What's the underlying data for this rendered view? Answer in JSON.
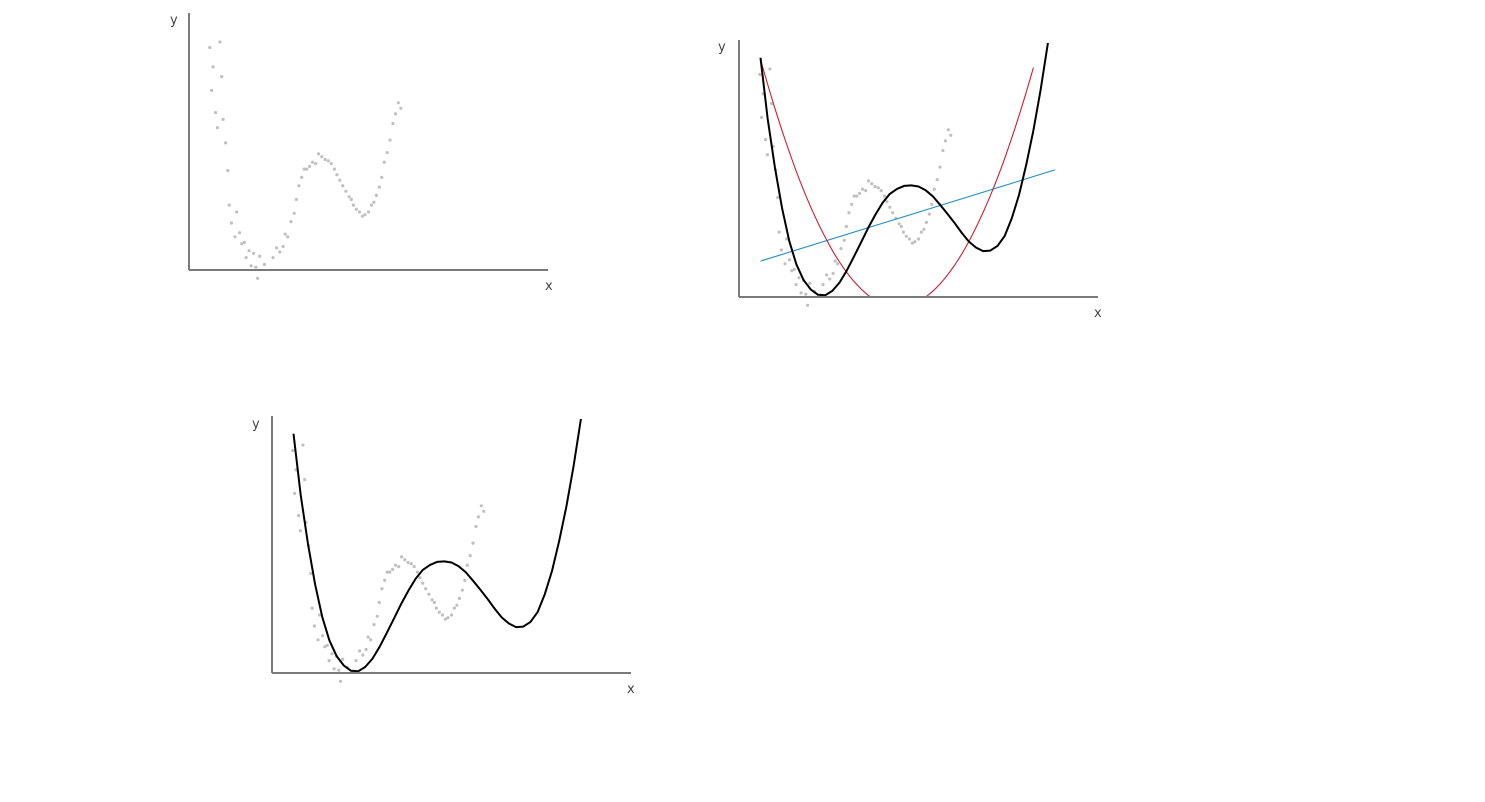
{
  "chart_data": [
    {
      "type": "scatter",
      "xlabel": "x",
      "ylabel": "y",
      "xlim": [
        0,
        10
      ],
      "ylim": [
        -2.3,
        7
      ],
      "grid": false,
      "colors": {
        "axis": "#7a7a7a",
        "points": "#c0c0c0"
      },
      "points": [
        [
          0.58,
          5.75
        ],
        [
          0.63,
          4.2
        ],
        [
          0.67,
          5.05
        ],
        [
          0.74,
          3.4
        ],
        [
          0.79,
          2.85
        ],
        [
          0.86,
          5.95
        ],
        [
          0.91,
          4.7
        ],
        [
          0.95,
          3.15
        ],
        [
          1.02,
          2.3
        ],
        [
          1.08,
          1.3
        ],
        [
          1.12,
          0.05
        ],
        [
          1.18,
          -0.6
        ],
        [
          1.28,
          -1.1
        ],
        [
          1.33,
          -0.2
        ],
        [
          1.41,
          -0.95
        ],
        [
          1.47,
          -1.35
        ],
        [
          1.54,
          -1.3
        ],
        [
          1.59,
          -1.85
        ],
        [
          1.67,
          -1.6
        ],
        [
          1.73,
          -2.15
        ],
        [
          1.8,
          -1.7
        ],
        [
          1.86,
          -2.2
        ],
        [
          1.91,
          -2.6
        ],
        [
          1.97,
          -1.8
        ],
        [
          2.1,
          -2.1
        ],
        [
          2.34,
          -1.85
        ],
        [
          2.44,
          -1.5
        ],
        [
          2.53,
          -1.65
        ],
        [
          2.62,
          -1.45
        ],
        [
          2.68,
          -1.0
        ],
        [
          2.75,
          -1.1
        ],
        [
          2.84,
          -0.55
        ],
        [
          2.93,
          -0.25
        ],
        [
          2.99,
          0.25
        ],
        [
          3.06,
          0.75
        ],
        [
          3.14,
          1.05
        ],
        [
          3.21,
          1.35
        ],
        [
          3.28,
          1.35
        ],
        [
          3.36,
          1.45
        ],
        [
          3.44,
          1.6
        ],
        [
          3.53,
          1.55
        ],
        [
          3.61,
          1.9
        ],
        [
          3.7,
          1.8
        ],
        [
          3.79,
          1.7
        ],
        [
          3.88,
          1.65
        ],
        [
          3.96,
          1.55
        ],
        [
          4.05,
          1.35
        ],
        [
          4.12,
          1.15
        ],
        [
          4.2,
          0.95
        ],
        [
          4.28,
          0.75
        ],
        [
          4.37,
          0.55
        ],
        [
          4.46,
          0.35
        ],
        [
          4.52,
          0.25
        ],
        [
          4.58,
          0.05
        ],
        [
          4.66,
          -0.1
        ],
        [
          4.75,
          -0.2
        ],
        [
          4.83,
          -0.35
        ],
        [
          4.9,
          -0.3
        ],
        [
          5.0,
          -0.2
        ],
        [
          5.08,
          0.05
        ],
        [
          5.15,
          0.15
        ],
        [
          5.22,
          0.4
        ],
        [
          5.3,
          0.7
        ],
        [
          5.37,
          1.05
        ],
        [
          5.44,
          1.6
        ],
        [
          5.52,
          1.95
        ],
        [
          5.6,
          2.4
        ],
        [
          5.68,
          3.0
        ],
        [
          5.75,
          3.35
        ],
        [
          5.83,
          3.75
        ],
        [
          5.9,
          3.55
        ]
      ]
    },
    {
      "type": "line",
      "xlabel": "x",
      "ylabel": "y",
      "xlim": [
        0,
        10
      ],
      "ylim": [
        -2.3,
        7
      ],
      "grid": false,
      "colors": {
        "axis": "#7a7a7a",
        "points": "#c0c0c0",
        "linear_fit": "#1f8fc8",
        "quadratic_fit": "#cc1f2f",
        "polynomial_fit": "#000000"
      },
      "points": [
        [
          0.58,
          5.75
        ],
        [
          0.63,
          4.2
        ],
        [
          0.67,
          5.05
        ],
        [
          0.74,
          3.4
        ],
        [
          0.79,
          2.85
        ],
        [
          0.86,
          5.95
        ],
        [
          0.91,
          4.7
        ],
        [
          0.95,
          3.15
        ],
        [
          1.02,
          2.3
        ],
        [
          1.08,
          1.3
        ],
        [
          1.12,
          0.05
        ],
        [
          1.18,
          -0.6
        ],
        [
          1.28,
          -1.1
        ],
        [
          1.33,
          -0.2
        ],
        [
          1.41,
          -0.95
        ],
        [
          1.47,
          -1.35
        ],
        [
          1.54,
          -1.3
        ],
        [
          1.59,
          -1.85
        ],
        [
          1.67,
          -1.6
        ],
        [
          1.73,
          -2.15
        ],
        [
          1.8,
          -1.7
        ],
        [
          1.86,
          -2.2
        ],
        [
          1.91,
          -2.6
        ],
        [
          1.97,
          -1.8
        ],
        [
          2.1,
          -2.1
        ],
        [
          2.34,
          -1.85
        ],
        [
          2.44,
          -1.5
        ],
        [
          2.53,
          -1.65
        ],
        [
          2.62,
          -1.45
        ],
        [
          2.68,
          -1.0
        ],
        [
          2.75,
          -1.1
        ],
        [
          2.84,
          -0.55
        ],
        [
          2.93,
          -0.25
        ],
        [
          2.99,
          0.25
        ],
        [
          3.06,
          0.75
        ],
        [
          3.14,
          1.05
        ],
        [
          3.21,
          1.35
        ],
        [
          3.28,
          1.35
        ],
        [
          3.36,
          1.45
        ],
        [
          3.44,
          1.6
        ],
        [
          3.53,
          1.55
        ],
        [
          3.61,
          1.9
        ],
        [
          3.7,
          1.8
        ],
        [
          3.79,
          1.7
        ],
        [
          3.88,
          1.65
        ],
        [
          3.96,
          1.55
        ],
        [
          4.05,
          1.35
        ],
        [
          4.12,
          1.15
        ],
        [
          4.2,
          0.95
        ],
        [
          4.28,
          0.75
        ],
        [
          4.37,
          0.55
        ],
        [
          4.46,
          0.35
        ],
        [
          4.52,
          0.25
        ],
        [
          4.58,
          0.05
        ],
        [
          4.66,
          -0.1
        ],
        [
          4.75,
          -0.2
        ],
        [
          4.83,
          -0.35
        ],
        [
          4.9,
          -0.3
        ],
        [
          5.0,
          -0.2
        ],
        [
          5.08,
          0.05
        ],
        [
          5.15,
          0.15
        ],
        [
          5.22,
          0.4
        ],
        [
          5.3,
          0.7
        ],
        [
          5.37,
          1.05
        ],
        [
          5.44,
          1.6
        ],
        [
          5.52,
          1.95
        ],
        [
          5.6,
          2.4
        ],
        [
          5.68,
          3.0
        ],
        [
          5.75,
          3.35
        ],
        [
          5.83,
          3.75
        ],
        [
          5.9,
          3.55
        ]
      ],
      "linear_fit": {
        "x": [
          0.6,
          8.8
        ],
        "y": [
          -1.0,
          2.3
        ]
      },
      "quadratic_fit": {
        "x": [
          0.6,
          5.2,
          8.2
        ],
        "y": [
          6.3,
          -2.3,
          6.0
        ]
      },
      "polynomial_fit": {
        "x": [
          0.6,
          0.8,
          1.0,
          1.2,
          1.4,
          1.6,
          1.8,
          2.0,
          2.2,
          2.4,
          2.6,
          2.8,
          3.0,
          3.2,
          3.4,
          3.6,
          3.8,
          4.0,
          4.2,
          4.4,
          4.6,
          4.8,
          5.0,
          5.2,
          5.4,
          5.6,
          5.8,
          6.0,
          6.2,
          6.4,
          6.6,
          6.8,
          7.0,
          7.2,
          7.4,
          7.6,
          7.8,
          8.0,
          8.2,
          8.4,
          8.6,
          8.8
        ],
        "y": [
          6.36,
          4.14,
          2.39,
          0.91,
          -0.28,
          -1.12,
          -1.69,
          -2.03,
          -2.22,
          -2.24,
          -2.08,
          -1.78,
          -1.35,
          -0.84,
          -0.32,
          0.2,
          0.68,
          1.11,
          1.43,
          1.61,
          1.72,
          1.74,
          1.7,
          1.56,
          1.34,
          1.04,
          0.72,
          0.39,
          0.03,
          -0.29,
          -0.51,
          -0.64,
          -0.62,
          -0.45,
          -0.09,
          0.55,
          1.39,
          2.48,
          3.73,
          5.19,
          6.84,
          8.64
        ]
      }
    },
    {
      "type": "line",
      "xlabel": "x",
      "ylabel": "y",
      "xlim": [
        0,
        10
      ],
      "ylim": [
        -2.3,
        7
      ],
      "grid": false,
      "colors": {
        "axis": "#7a7a7a",
        "points": "#c0c0c0",
        "polynomial_fit": "#000000"
      },
      "points": [
        [
          0.58,
          5.75
        ],
        [
          0.63,
          4.2
        ],
        [
          0.67,
          5.05
        ],
        [
          0.74,
          3.4
        ],
        [
          0.79,
          2.85
        ],
        [
          0.86,
          5.95
        ],
        [
          0.91,
          4.7
        ],
        [
          0.95,
          3.15
        ],
        [
          1.02,
          2.3
        ],
        [
          1.08,
          1.3
        ],
        [
          1.12,
          0.05
        ],
        [
          1.18,
          -0.6
        ],
        [
          1.28,
          -1.1
        ],
        [
          1.33,
          -0.2
        ],
        [
          1.41,
          -0.95
        ],
        [
          1.47,
          -1.35
        ],
        [
          1.54,
          -1.3
        ],
        [
          1.59,
          -1.85
        ],
        [
          1.67,
          -1.6
        ],
        [
          1.73,
          -2.15
        ],
        [
          1.8,
          -1.7
        ],
        [
          1.86,
          -2.2
        ],
        [
          1.91,
          -2.6
        ],
        [
          1.97,
          -1.8
        ],
        [
          2.1,
          -2.1
        ],
        [
          2.34,
          -1.85
        ],
        [
          2.44,
          -1.5
        ],
        [
          2.53,
          -1.65
        ],
        [
          2.62,
          -1.45
        ],
        [
          2.68,
          -1.0
        ],
        [
          2.75,
          -1.1
        ],
        [
          2.84,
          -0.55
        ],
        [
          2.93,
          -0.25
        ],
        [
          2.99,
          0.25
        ],
        [
          3.06,
          0.75
        ],
        [
          3.14,
          1.05
        ],
        [
          3.21,
          1.35
        ],
        [
          3.28,
          1.35
        ],
        [
          3.36,
          1.45
        ],
        [
          3.44,
          1.6
        ],
        [
          3.53,
          1.55
        ],
        [
          3.61,
          1.9
        ],
        [
          3.7,
          1.8
        ],
        [
          3.79,
          1.7
        ],
        [
          3.88,
          1.65
        ],
        [
          3.96,
          1.55
        ],
        [
          4.05,
          1.35
        ],
        [
          4.12,
          1.15
        ],
        [
          4.2,
          0.95
        ],
        [
          4.28,
          0.75
        ],
        [
          4.37,
          0.55
        ],
        [
          4.46,
          0.35
        ],
        [
          4.52,
          0.25
        ],
        [
          4.58,
          0.05
        ],
        [
          4.66,
          -0.1
        ],
        [
          4.75,
          -0.2
        ],
        [
          4.83,
          -0.35
        ],
        [
          4.9,
          -0.3
        ],
        [
          5.0,
          -0.2
        ],
        [
          5.08,
          0.05
        ],
        [
          5.15,
          0.15
        ],
        [
          5.22,
          0.4
        ],
        [
          5.3,
          0.7
        ],
        [
          5.37,
          1.05
        ],
        [
          5.44,
          1.6
        ],
        [
          5.52,
          1.95
        ],
        [
          5.6,
          2.4
        ],
        [
          5.68,
          3.0
        ],
        [
          5.75,
          3.35
        ],
        [
          5.83,
          3.75
        ],
        [
          5.9,
          3.55
        ]
      ],
      "polynomial_fit": {
        "x": [
          0.6,
          0.8,
          1.0,
          1.2,
          1.4,
          1.6,
          1.8,
          2.0,
          2.2,
          2.4,
          2.6,
          2.8,
          3.0,
          3.2,
          3.4,
          3.6,
          3.8,
          4.0,
          4.2,
          4.4,
          4.6,
          4.8,
          5.0,
          5.2,
          5.4,
          5.6,
          5.8,
          6.0,
          6.2,
          6.4,
          6.6,
          6.8,
          7.0,
          7.2,
          7.4,
          7.6,
          7.8,
          8.0,
          8.2,
          8.4,
          8.6,
          8.8
        ],
        "y": [
          6.36,
          4.14,
          2.39,
          0.91,
          -0.28,
          -1.12,
          -1.69,
          -2.03,
          -2.22,
          -2.24,
          -2.08,
          -1.78,
          -1.35,
          -0.84,
          -0.32,
          0.2,
          0.68,
          1.11,
          1.43,
          1.61,
          1.72,
          1.74,
          1.7,
          1.56,
          1.34,
          1.04,
          0.72,
          0.39,
          0.03,
          -0.29,
          -0.51,
          -0.64,
          -0.62,
          -0.45,
          -0.09,
          0.55,
          1.39,
          2.48,
          3.73,
          5.19,
          6.84,
          8.64
        ]
      }
    }
  ]
}
